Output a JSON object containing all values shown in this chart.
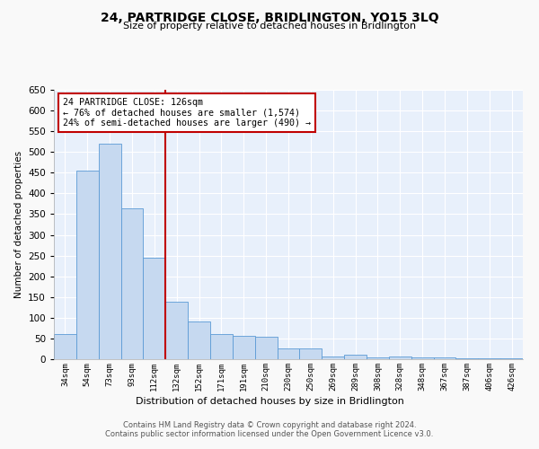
{
  "title": "24, PARTRIDGE CLOSE, BRIDLINGTON, YO15 3LQ",
  "subtitle": "Size of property relative to detached houses in Bridlington",
  "xlabel": "Distribution of detached houses by size in Bridlington",
  "ylabel": "Number of detached properties",
  "categories": [
    "34sqm",
    "54sqm",
    "73sqm",
    "93sqm",
    "112sqm",
    "132sqm",
    "152sqm",
    "171sqm",
    "191sqm",
    "210sqm",
    "230sqm",
    "250sqm",
    "269sqm",
    "289sqm",
    "308sqm",
    "328sqm",
    "348sqm",
    "367sqm",
    "387sqm",
    "406sqm",
    "426sqm"
  ],
  "values": [
    60,
    455,
    520,
    365,
    245,
    138,
    91,
    60,
    57,
    55,
    25,
    25,
    7,
    10,
    5,
    7,
    4,
    5,
    3,
    2,
    2
  ],
  "bar_color": "#c6d9f0",
  "bar_edge_color": "#5b9bd5",
  "vline_x_idx": 5,
  "vline_color": "#c00000",
  "annotation_text": "24 PARTRIDGE CLOSE: 126sqm\n← 76% of detached houses are smaller (1,574)\n24% of semi-detached houses are larger (490) →",
  "annotation_box_color": "#c00000",
  "ylim": [
    0,
    650
  ],
  "background_color": "#e8f0fb",
  "grid_color": "#ffffff",
  "footer_line1": "Contains HM Land Registry data © Crown copyright and database right 2024.",
  "footer_line2": "Contains public sector information licensed under the Open Government Licence v3.0."
}
